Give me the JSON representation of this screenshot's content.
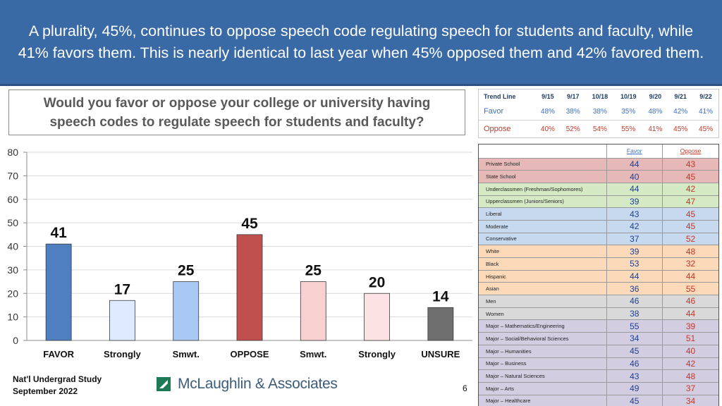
{
  "header": {
    "title": "A plurality, 45%, continues to oppose speech code regulating speech for students and faculty, while 41% favors them. This is nearly identical to last year when 45% opposed them and 42% favored them."
  },
  "question": {
    "text": "Would you favor or oppose your college or university having speech codes to regulate speech for students and faculty?"
  },
  "trend": {
    "label": "Trend Line",
    "periods": [
      "9/15",
      "9/17",
      "10/18",
      "10/19",
      "9/20",
      "9/21",
      "9/22"
    ],
    "rows": [
      {
        "label": "Favor",
        "values": [
          "48%",
          "38%",
          "38%",
          "35%",
          "48%",
          "42%",
          "41%"
        ]
      },
      {
        "label": "Oppose",
        "values": [
          "40%",
          "52%",
          "54%",
          "55%",
          "41%",
          "45%",
          "45%"
        ]
      }
    ]
  },
  "chart_data": {
    "type": "bar",
    "categories": [
      "FAVOR",
      "Strongly",
      "Smwt.",
      "OPPOSE",
      "Smwt.",
      "Strongly",
      "UNSURE"
    ],
    "values": [
      41,
      17,
      25,
      45,
      25,
      20,
      14
    ],
    "ylim": [
      0,
      80
    ],
    "yticks": [
      0,
      10,
      20,
      30,
      40,
      50,
      60,
      70,
      80
    ],
    "grid": true,
    "colors": [
      "#4f7fc0",
      "#ddeaff",
      "#aac8f4",
      "#c0504d",
      "#f8d0cf",
      "#fce2e2",
      "#6f6f6f"
    ]
  },
  "demographics": {
    "headers": {
      "favor": "Favor",
      "oppose": "Oppose"
    },
    "rows": [
      {
        "segment": "Private School",
        "favor": "44",
        "oppose": "43",
        "color": "#e6b9b8"
      },
      {
        "segment": "State School",
        "favor": "40",
        "oppose": "45",
        "color": "#e6b9b8"
      },
      {
        "segment": "Underclassmen (Freshman/Sophomores)",
        "favor": "44",
        "oppose": "42",
        "color": "#d4e9c4"
      },
      {
        "segment": "Upperclassmen (Juniors/Seniors)",
        "favor": "39",
        "oppose": "47",
        "color": "#d4e9c4"
      },
      {
        "segment": "Liberal",
        "favor": "43",
        "oppose": "45",
        "color": "#c7d9ee"
      },
      {
        "segment": "Moderate",
        "favor": "42",
        "oppose": "45",
        "color": "#c7d9ee"
      },
      {
        "segment": "Conservative",
        "favor": "37",
        "oppose": "52",
        "color": "#c7d9ee"
      },
      {
        "segment": "White",
        "favor": "39",
        "oppose": "48",
        "color": "#fcd9b8"
      },
      {
        "segment": "Black",
        "favor": "53",
        "oppose": "32",
        "color": "#fcd9b8"
      },
      {
        "segment": "Hispanic",
        "favor": "44",
        "oppose": "44",
        "color": "#fcd9b8"
      },
      {
        "segment": "Asian",
        "favor": "36",
        "oppose": "55",
        "color": "#fcd9b8"
      },
      {
        "segment": "Men",
        "favor": "46",
        "oppose": "46",
        "color": "#d9d9d9"
      },
      {
        "segment": "Women",
        "favor": "38",
        "oppose": "44",
        "color": "#d9d9d9"
      },
      {
        "segment": "Major – Mathematics/Engineering",
        "favor": "55",
        "oppose": "39",
        "color": "#d3cde2"
      },
      {
        "segment": "Major – Social/Behavioral Sciences",
        "favor": "34",
        "oppose": "51",
        "color": "#d3cde2"
      },
      {
        "segment": "Major – Humanities",
        "favor": "45",
        "oppose": "40",
        "color": "#d3cde2"
      },
      {
        "segment": "Major – Business",
        "favor": "46",
        "oppose": "42",
        "color": "#d3cde2"
      },
      {
        "segment": "Major – Natural Sciences",
        "favor": "43",
        "oppose": "48",
        "color": "#d3cde2"
      },
      {
        "segment": "Major – Arts",
        "favor": "49",
        "oppose": "37",
        "color": "#d3cde2"
      },
      {
        "segment": "Major – Healthcare",
        "favor": "45",
        "oppose": "34",
        "color": "#d3cde2"
      }
    ]
  },
  "footer": {
    "study_line1": "Nat'l Undergrad Study",
    "study_line2": "September 2022",
    "logo_text": "McLaughlin & Associates",
    "page_number": "6"
  }
}
